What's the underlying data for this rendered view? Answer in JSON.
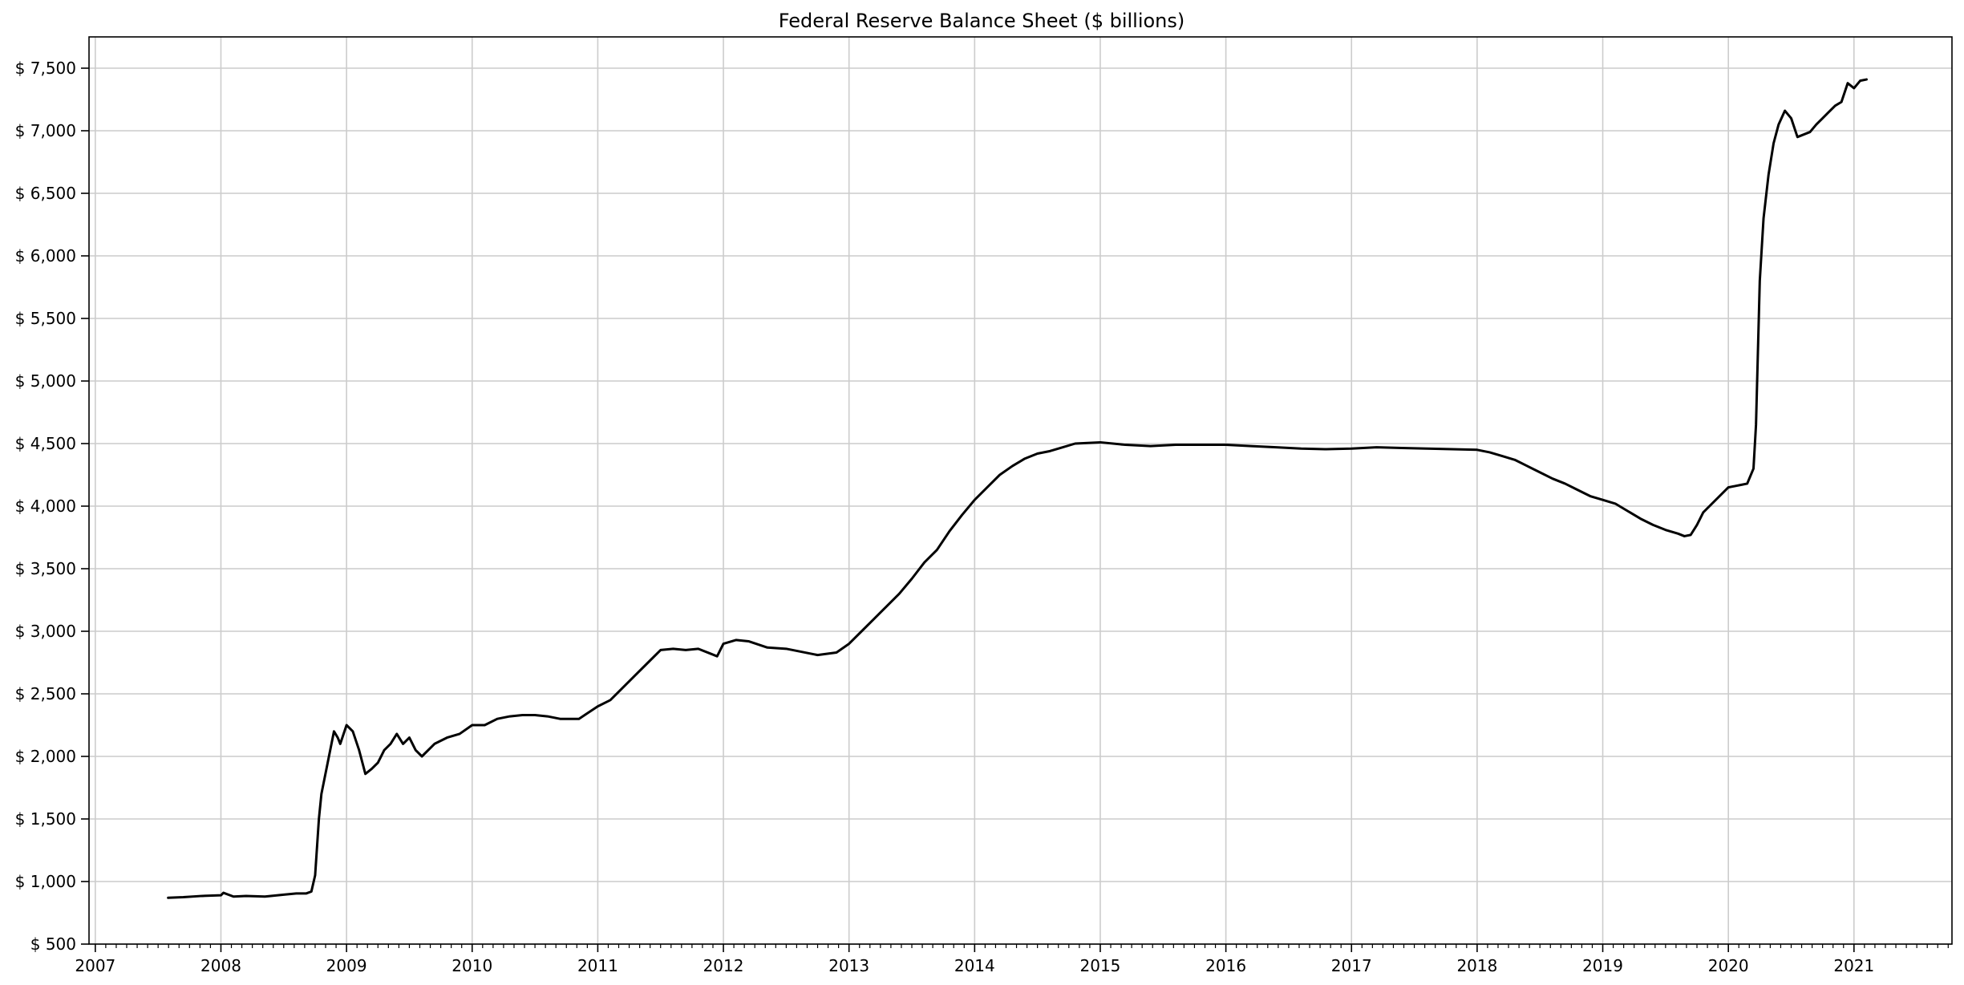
{
  "chart_data": {
    "type": "line",
    "title": "Federal Reserve Balance Sheet ($ billions)",
    "xlabel": "",
    "ylabel": "",
    "x_axis": "date (year)",
    "xlim": [
      2006.95,
      2021.78
    ],
    "ylim": [
      500,
      7750
    ],
    "grid": true,
    "legend": "none",
    "x_ticks": [
      2007,
      2008,
      2009,
      2010,
      2011,
      2012,
      2013,
      2014,
      2015,
      2016,
      2017,
      2018,
      2019,
      2020,
      2021
    ],
    "x_tick_labels": [
      "2007",
      "2008",
      "2009",
      "2010",
      "2011",
      "2012",
      "2013",
      "2014",
      "2015",
      "2016",
      "2017",
      "2018",
      "2019",
      "2020",
      "2021"
    ],
    "y_ticks": [
      500,
      1000,
      1500,
      2000,
      2500,
      3000,
      3500,
      4000,
      4500,
      5000,
      5500,
      6000,
      6500,
      7000,
      7500
    ],
    "y_tick_labels": [
      "$ 500",
      "$ 1,000",
      "$ 1,500",
      "$ 2,000",
      "$ 2,500",
      "$ 3,000",
      "$ 3,500",
      "$ 4,000",
      "$ 4,500",
      "$ 5,000",
      "$ 5,500",
      "$ 6,000",
      "$ 6,500",
      "$ 7,000",
      "$ 7,500"
    ],
    "series": [
      {
        "color": "#000000",
        "x": [
          2007.58,
          2007.7,
          2007.85,
          2008.0,
          2008.02,
          2008.1,
          2008.2,
          2008.35,
          2008.5,
          2008.6,
          2008.68,
          2008.72,
          2008.75,
          2008.78,
          2008.8,
          2008.85,
          2008.9,
          2008.93,
          2008.95,
          2009.0,
          2009.05,
          2009.1,
          2009.15,
          2009.2,
          2009.25,
          2009.3,
          2009.35,
          2009.4,
          2009.45,
          2009.5,
          2009.55,
          2009.6,
          2009.7,
          2009.8,
          2009.9,
          2010.0,
          2010.1,
          2010.2,
          2010.3,
          2010.4,
          2010.5,
          2010.6,
          2010.7,
          2010.85,
          2011.0,
          2011.1,
          2011.2,
          2011.3,
          2011.4,
          2011.5,
          2011.6,
          2011.7,
          2011.8,
          2011.9,
          2011.95,
          2012.0,
          2012.1,
          2012.2,
          2012.35,
          2012.5,
          2012.6,
          2012.75,
          2012.9,
          2013.0,
          2013.1,
          2013.2,
          2013.3,
          2013.4,
          2013.5,
          2013.6,
          2013.7,
          2013.8,
          2013.9,
          2014.0,
          2014.1,
          2014.2,
          2014.3,
          2014.4,
          2014.5,
          2014.6,
          2014.7,
          2014.8,
          2015.0,
          2015.2,
          2015.4,
          2015.6,
          2015.8,
          2016.0,
          2016.2,
          2016.4,
          2016.6,
          2016.8,
          2017.0,
          2017.2,
          2017.4,
          2017.6,
          2017.8,
          2018.0,
          2018.1,
          2018.2,
          2018.3,
          2018.4,
          2018.5,
          2018.6,
          2018.7,
          2018.8,
          2018.9,
          2019.0,
          2019.1,
          2019.2,
          2019.3,
          2019.4,
          2019.5,
          2019.6,
          2019.65,
          2019.7,
          2019.75,
          2019.8,
          2019.9,
          2020.0,
          2020.05,
          2020.1,
          2020.15,
          2020.2,
          2020.22,
          2020.25,
          2020.28,
          2020.32,
          2020.36,
          2020.4,
          2020.45,
          2020.5,
          2020.55,
          2020.6,
          2020.65,
          2020.7,
          2020.75,
          2020.8,
          2020.85,
          2020.9,
          2020.95,
          2021.0,
          2021.05,
          2021.1
        ],
        "y": [
          870,
          875,
          885,
          890,
          910,
          880,
          885,
          880,
          895,
          905,
          905,
          920,
          1050,
          1500,
          1700,
          1950,
          2200,
          2150,
          2100,
          2250,
          2200,
          2050,
          1860,
          1900,
          1950,
          2050,
          2100,
          2180,
          2100,
          2150,
          2050,
          2000,
          2100,
          2150,
          2180,
          2250,
          2250,
          2300,
          2320,
          2330,
          2330,
          2320,
          2300,
          2300,
          2400,
          2450,
          2550,
          2650,
          2750,
          2850,
          2860,
          2850,
          2860,
          2820,
          2800,
          2900,
          2930,
          2920,
          2870,
          2860,
          2840,
          2810,
          2830,
          2900,
          3000,
          3100,
          3200,
          3300,
          3420,
          3550,
          3650,
          3800,
          3930,
          4050,
          4150,
          4250,
          4320,
          4380,
          4420,
          4440,
          4470,
          4500,
          4510,
          4490,
          4480,
          4490,
          4490,
          4490,
          4480,
          4470,
          4460,
          4455,
          4460,
          4470,
          4465,
          4460,
          4455,
          4450,
          4430,
          4400,
          4370,
          4320,
          4270,
          4220,
          4180,
          4130,
          4080,
          4050,
          4020,
          3960,
          3900,
          3850,
          3810,
          3780,
          3760,
          3770,
          3850,
          3950,
          4050,
          4150,
          4160,
          4170,
          4180,
          4300,
          4650,
          5800,
          6300,
          6650,
          6900,
          7050,
          7160,
          7100,
          6950,
          6970,
          6990,
          7050,
          7100,
          7150,
          7200,
          7230,
          7380,
          7340,
          7400,
          7410
        ]
      }
    ]
  }
}
